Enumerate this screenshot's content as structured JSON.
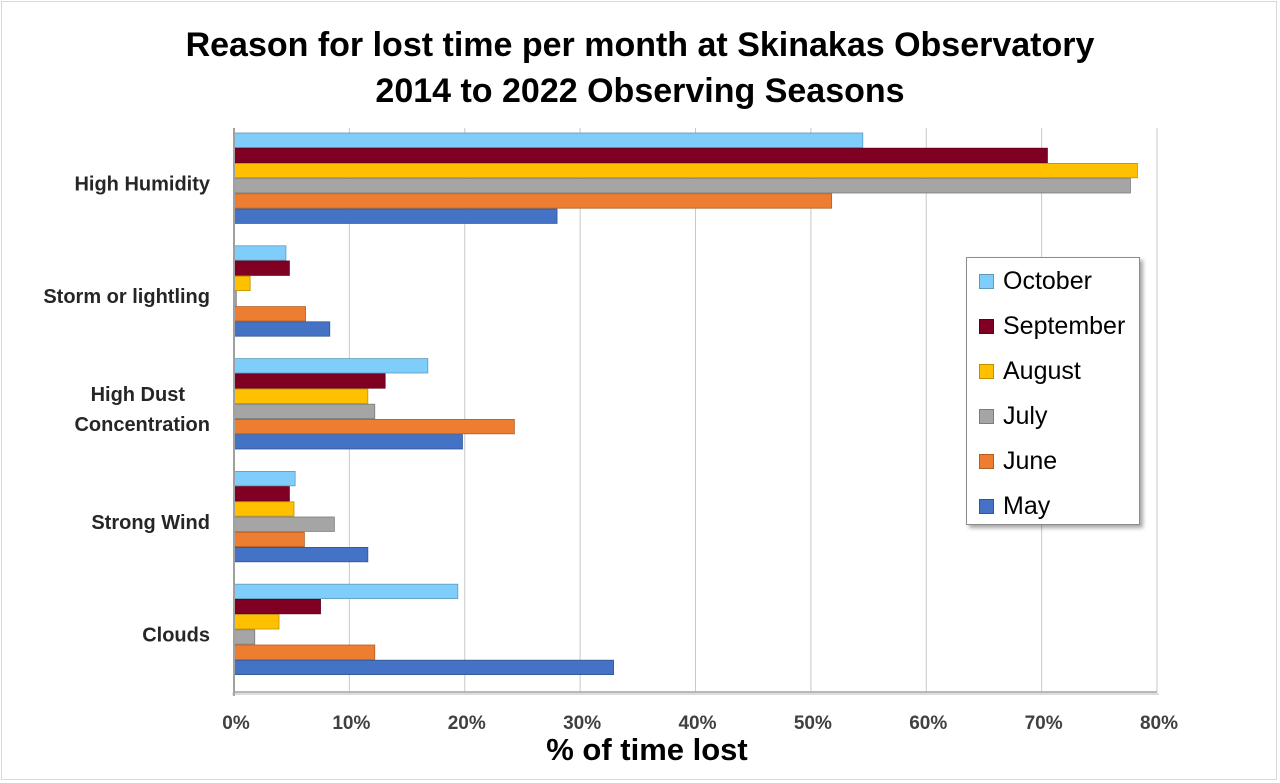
{
  "chart_data": {
    "type": "bar",
    "orientation": "horizontal",
    "title": [
      "Reason for lost time per month at Skinakas Observatory",
      "2014 to 2022 Observing Seasons"
    ],
    "xlabel": "% of time lost",
    "ylabel": "",
    "xlim": [
      0,
      80
    ],
    "x_ticks": [
      "0%",
      "10%",
      "20%",
      "30%",
      "40%",
      "50%",
      "60%",
      "70%",
      "80%"
    ],
    "grid": true,
    "legend_position": "right",
    "categories": [
      "High Humidity",
      "Storm or lightling",
      "High Dust Concentration",
      "Strong Wind",
      "Clouds"
    ],
    "series": [
      {
        "name": "October",
        "color": "#7fcdfb",
        "values": [
          54.5,
          4.5,
          16.8,
          5.3,
          19.4
        ]
      },
      {
        "name": "September",
        "color": "#7f0022",
        "values": [
          70.5,
          4.8,
          13.1,
          4.8,
          7.5
        ]
      },
      {
        "name": "August",
        "color": "#ffc000",
        "values": [
          78.3,
          1.4,
          11.6,
          5.2,
          3.9
        ]
      },
      {
        "name": "July",
        "color": "#a5a5a5",
        "values": [
          77.7,
          0.2,
          12.2,
          8.7,
          1.8
        ]
      },
      {
        "name": "June",
        "color": "#ed7d31",
        "values": [
          51.8,
          6.2,
          24.3,
          6.1,
          12.2
        ]
      },
      {
        "name": "May",
        "color": "#4472c4",
        "values": [
          28.0,
          8.3,
          19.8,
          11.6,
          32.9
        ]
      }
    ]
  }
}
